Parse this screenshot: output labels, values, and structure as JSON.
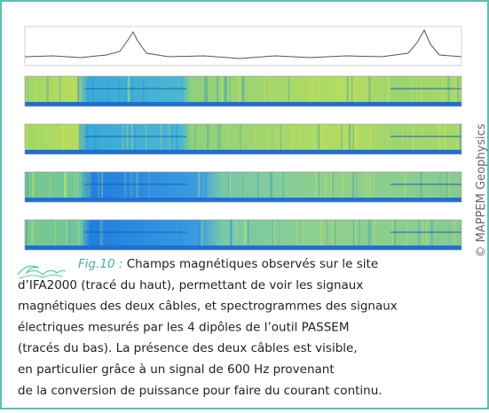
{
  "figure": {
    "credit": "© MAPPEM Geophysics",
    "caption": {
      "label": "Fig.10 :",
      "lines": [
        "Champs magnétiques observés sur le site",
        "d’IFA2000 (tracé du haut), permettant de voir les signaux",
        "magnétiques des deux câbles, et spectrogrammes des signaux",
        "électriques mesurés par les 4 dipôles de l’outil PASSEM",
        "(tracés du bas). La présence des deux câbles est visible,",
        "en particulier grâce à un signal de 600 Hz provenant",
        "de la conversion de puissance pour faire du courant continu."
      ]
    }
  }
}
